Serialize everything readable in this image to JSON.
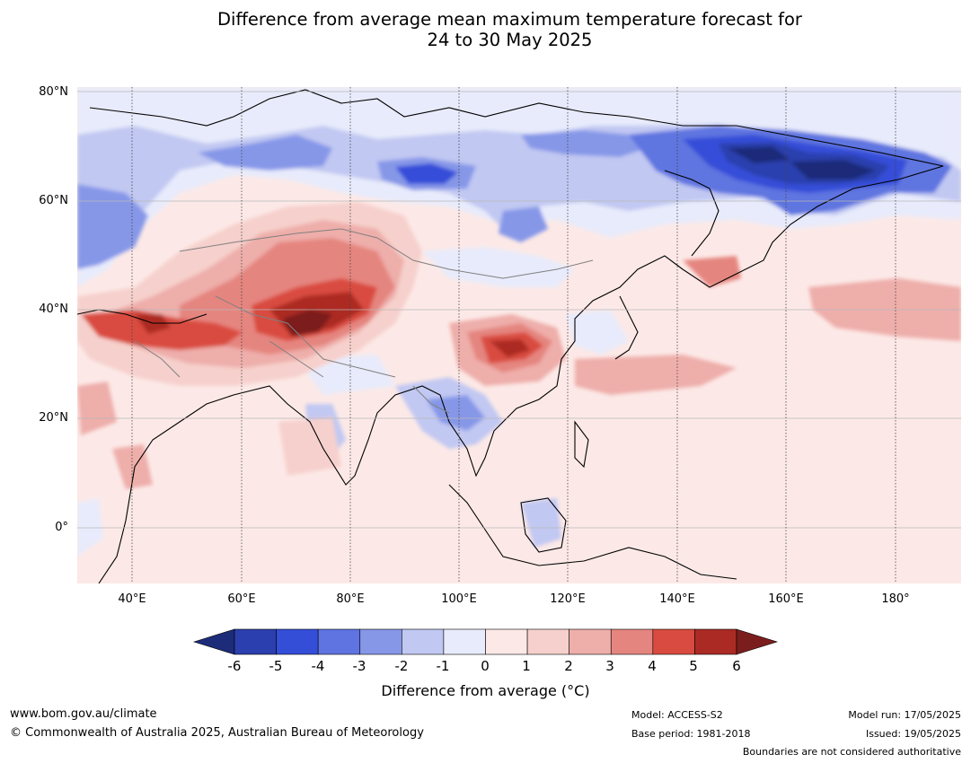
{
  "title_line1": "Difference from average mean maximum temperature forecast for",
  "title_line2": "24 to 30 May 2025",
  "map": {
    "lat_labels": [
      "80°N",
      "60°N",
      "40°N",
      "20°N",
      "0°"
    ],
    "lon_labels": [
      "40°E",
      "60°E",
      "80°E",
      "100°E",
      "120°E",
      "140°E",
      "160°E",
      "180°"
    ],
    "colors": {
      "ocean_base": "#fce9e7",
      "neg6": "#1d2c79",
      "neg5": "#2c3fae",
      "neg4": "#344ed8",
      "neg3": "#5f74e0",
      "neg2": "#8697e8",
      "neg1": "#c1c8f2",
      "zero_neg": "#e8ebfb",
      "pos0": "#fce9e7",
      "pos1": "#f6d0cc",
      "pos2": "#eeaeaa",
      "pos3": "#e5857f",
      "pos4": "#d94b40",
      "pos5": "#ac2a24",
      "pos6": "#7c1d1d"
    }
  },
  "colorbar": {
    "ticks": [
      "-6",
      "-5",
      "-4",
      "-3",
      "-2",
      "-1",
      "0",
      "1",
      "2",
      "3",
      "4",
      "5",
      "6"
    ],
    "colors": [
      "#2c3fae",
      "#344ed8",
      "#5f74e0",
      "#8697e8",
      "#c1c8f2",
      "#e8ebfb",
      "#fce9e7",
      "#f6d0cc",
      "#eeaeaa",
      "#e5857f",
      "#d94b40",
      "#ac2a24"
    ],
    "low_extend_color": "#1d2c79",
    "high_extend_color": "#7c1d1d",
    "label": "Difference from average (°C)"
  },
  "footer": {
    "website": "www.bom.gov.au/climate",
    "copyright": "© Commonwealth of Australia 2025, Australian Bureau of Meteorology",
    "model": "Model: ACCESS-S2",
    "base_period": "Base period: 1981-2018",
    "model_run": "Model run: 17/05/2025",
    "issued": "Issued: 19/05/2025",
    "disclaimer": "Boundaries are not considered authoritative"
  }
}
